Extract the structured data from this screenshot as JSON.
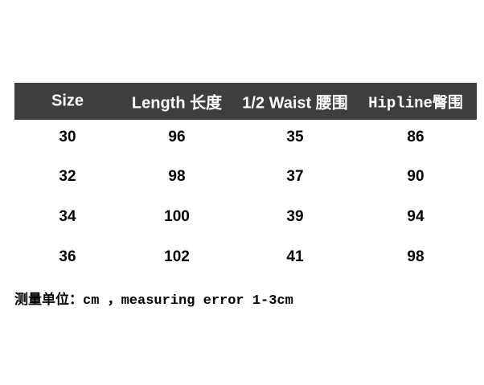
{
  "colors": {
    "background": "#ffffff",
    "header_bg": "#3e3e3e",
    "header_text": "#ffffff",
    "body_text": "#000000"
  },
  "table": {
    "headers": [
      "Size",
      "Length 长度",
      "1/2 Waist 腰围",
      "Hipline臀围"
    ],
    "rows": [
      {
        "size": "30",
        "len": "96",
        "waist": "35",
        "hip": "86"
      },
      {
        "size": "32",
        "len": "98",
        "waist": "37",
        "hip": "90"
      },
      {
        "size": "34",
        "len": "100",
        "waist": "39",
        "hip": "94"
      },
      {
        "size": "36",
        "len": "102",
        "waist": "41",
        "hip": "98"
      }
    ]
  },
  "note": {
    "text": "测量单位：cm ，measuring error 1-3cm"
  }
}
